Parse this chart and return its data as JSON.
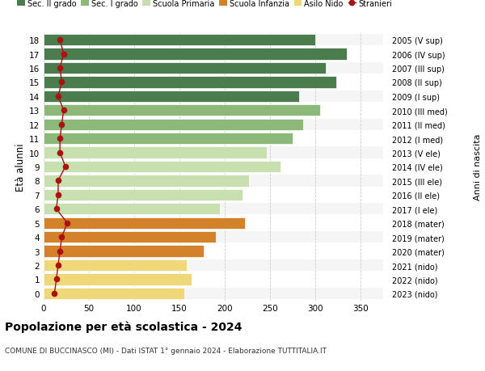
{
  "ages": [
    18,
    17,
    16,
    15,
    14,
    13,
    12,
    11,
    10,
    9,
    8,
    7,
    6,
    5,
    4,
    3,
    2,
    1,
    0
  ],
  "values": [
    300,
    335,
    312,
    323,
    282,
    305,
    287,
    275,
    246,
    262,
    227,
    220,
    195,
    222,
    190,
    177,
    158,
    163,
    155
  ],
  "stranieri": [
    18,
    22,
    18,
    20,
    16,
    22,
    20,
    18,
    18,
    24,
    16,
    16,
    14,
    26,
    20,
    18,
    16,
    14,
    12
  ],
  "right_labels": [
    "2005 (V sup)",
    "2006 (IV sup)",
    "2007 (III sup)",
    "2008 (II sup)",
    "2009 (I sup)",
    "2010 (III med)",
    "2011 (II med)",
    "2012 (I med)",
    "2013 (V ele)",
    "2014 (IV ele)",
    "2015 (III ele)",
    "2016 (II ele)",
    "2017 (I ele)",
    "2018 (mater)",
    "2019 (mater)",
    "2020 (mater)",
    "2021 (nido)",
    "2022 (nido)",
    "2023 (nido)"
  ],
  "bar_colors": [
    "#4a7c4e",
    "#4a7c4e",
    "#4a7c4e",
    "#4a7c4e",
    "#4a7c4e",
    "#8cb87a",
    "#8cb87a",
    "#8cb87a",
    "#c8e0b0",
    "#c8e0b0",
    "#c8e0b0",
    "#c8e0b0",
    "#c8e0b0",
    "#d4822a",
    "#d4822a",
    "#d4822a",
    "#f0d878",
    "#f0d878",
    "#f0d878"
  ],
  "legend_labels": [
    "Sec. II grado",
    "Sec. I grado",
    "Scuola Primaria",
    "Scuola Infanzia",
    "Asilo Nido",
    "Stranieri"
  ],
  "legend_colors": [
    "#4a7c4e",
    "#8cb87a",
    "#c8e0b0",
    "#d4822a",
    "#f0d878",
    "#aa1111"
  ],
  "title": "Popolazione per età scolastica - 2024",
  "subtitle": "COMUNE DI BUCCINASCO (MI) - Dati ISTAT 1° gennaio 2024 - Elaborazione TUTTITALIA.IT",
  "ylabel": "Età alunni",
  "right_ylabel": "Anni di nascita",
  "xlabel_ticks": [
    0,
    50,
    100,
    150,
    200,
    250,
    300,
    350
  ],
  "xlim": [
    0,
    375
  ],
  "stranieri_color": "#aa1111",
  "bg_color": "#ffffff",
  "bar_height": 0.82,
  "grid_color": "#cccccc",
  "row_bg_even": "#f5f5f5",
  "row_bg_odd": "#ffffff"
}
